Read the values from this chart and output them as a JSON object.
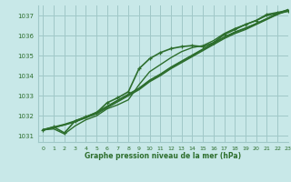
{
  "title": "Graphe pression niveau de la mer (hPa)",
  "bg_color": "#c8e8e8",
  "grid_color": "#a0c8c8",
  "line_color": "#2d6e2d",
  "text_color": "#2d6e2d",
  "xlim": [
    -0.5,
    23
  ],
  "ylim": [
    1030.7,
    1037.5
  ],
  "yticks": [
    1031,
    1032,
    1033,
    1034,
    1035,
    1036,
    1037
  ],
  "xticks": [
    0,
    1,
    2,
    3,
    4,
    5,
    6,
    7,
    8,
    9,
    10,
    11,
    12,
    13,
    14,
    15,
    16,
    17,
    18,
    19,
    20,
    21,
    22,
    23
  ],
  "lines": [
    {
      "x": [
        0,
        1,
        2,
        3,
        4,
        5,
        6,
        7,
        8,
        9,
        10,
        11,
        12,
        13,
        14,
        15,
        16,
        17,
        18,
        19,
        20,
        21,
        22,
        23
      ],
      "y": [
        1031.3,
        1031.45,
        1031.15,
        1031.75,
        1031.95,
        1032.15,
        1032.65,
        1032.9,
        1033.2,
        1034.35,
        1034.85,
        1035.15,
        1035.35,
        1035.45,
        1035.5,
        1035.45,
        1035.65,
        1036.05,
        1036.3,
        1036.55,
        1036.75,
        1037.05,
        1037.15,
        1037.25
      ],
      "marker": true,
      "lw": 1.2
    },
    {
      "x": [
        0,
        1,
        2,
        3,
        4,
        5,
        6,
        7,
        8,
        9,
        10,
        11,
        12,
        13,
        14,
        15,
        16,
        17,
        18,
        19,
        20,
        21,
        22,
        23
      ],
      "y": [
        1031.3,
        1031.42,
        1031.55,
        1031.7,
        1031.9,
        1032.1,
        1032.4,
        1032.7,
        1033.0,
        1033.3,
        1033.7,
        1034.0,
        1034.35,
        1034.65,
        1034.95,
        1035.25,
        1035.55,
        1035.85,
        1036.1,
        1036.3,
        1036.55,
        1036.8,
        1037.05,
        1037.25
      ],
      "marker": false,
      "lw": 1.0
    },
    {
      "x": [
        0,
        1,
        2,
        3,
        4,
        5,
        6,
        7,
        8,
        9,
        10,
        11,
        12,
        13,
        14,
        15,
        16,
        17,
        18,
        19,
        20,
        21,
        22,
        23
      ],
      "y": [
        1031.3,
        1031.42,
        1031.55,
        1031.72,
        1031.92,
        1032.15,
        1032.45,
        1032.75,
        1033.05,
        1033.35,
        1033.75,
        1034.05,
        1034.4,
        1034.7,
        1035.0,
        1035.3,
        1035.6,
        1035.9,
        1036.15,
        1036.35,
        1036.58,
        1036.83,
        1037.08,
        1037.28
      ],
      "marker": false,
      "lw": 1.0
    },
    {
      "x": [
        0,
        1,
        2,
        3,
        4,
        5,
        6,
        7,
        8,
        9,
        10,
        11,
        12,
        13,
        14,
        15,
        16,
        17,
        18,
        19,
        20,
        21,
        22,
        23
      ],
      "y": [
        1031.32,
        1031.45,
        1031.58,
        1031.75,
        1031.95,
        1032.18,
        1032.48,
        1032.78,
        1033.08,
        1033.38,
        1033.78,
        1034.08,
        1034.43,
        1034.73,
        1035.03,
        1035.33,
        1035.63,
        1035.93,
        1036.18,
        1036.38,
        1036.6,
        1036.85,
        1037.1,
        1037.3
      ],
      "marker": false,
      "lw": 1.0
    },
    {
      "x": [
        0,
        1,
        2,
        3,
        4,
        5,
        6,
        7,
        8,
        9,
        10,
        11,
        12,
        13,
        14,
        15,
        16,
        17,
        18,
        19,
        20,
        21,
        22,
        23
      ],
      "y": [
        1031.3,
        1031.35,
        1031.1,
        1031.5,
        1031.8,
        1032.0,
        1032.35,
        1032.55,
        1032.8,
        1033.55,
        1034.2,
        1034.55,
        1034.9,
        1035.2,
        1035.4,
        1035.5,
        1035.75,
        1036.1,
        1036.35,
        1036.55,
        1036.75,
        1037.0,
        1037.1,
        1037.2
      ],
      "marker": false,
      "lw": 1.0
    }
  ]
}
